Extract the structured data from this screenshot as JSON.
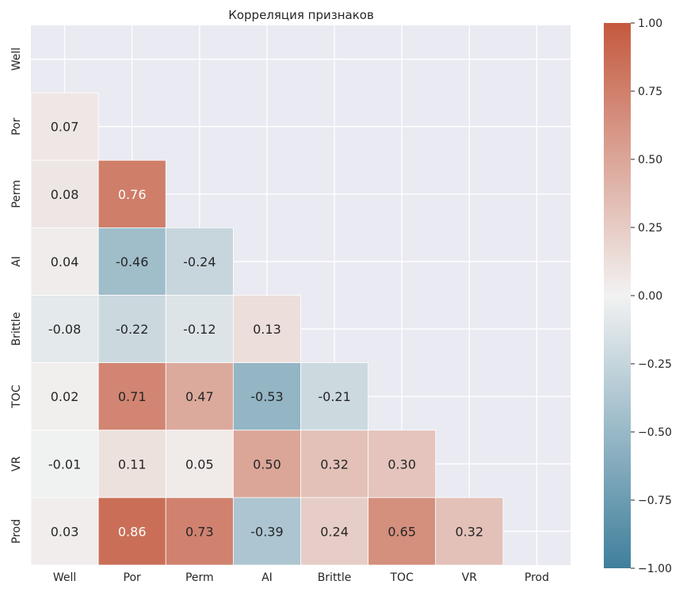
{
  "chart_data": {
    "type": "heatmap",
    "title": "Корреляция признаков",
    "variables": [
      "Well",
      "Por",
      "Perm",
      "AI",
      "Brittle",
      "TOC",
      "VR",
      "Prod"
    ],
    "mask": "upper-triangle-including-diagonal",
    "values": [
      [
        null,
        null,
        null,
        null,
        null,
        null,
        null,
        null
      ],
      [
        0.07,
        null,
        null,
        null,
        null,
        null,
        null,
        null
      ],
      [
        0.08,
        0.76,
        null,
        null,
        null,
        null,
        null,
        null
      ],
      [
        0.04,
        -0.46,
        -0.24,
        null,
        null,
        null,
        null,
        null
      ],
      [
        -0.08,
        -0.22,
        -0.12,
        0.13,
        null,
        null,
        null,
        null
      ],
      [
        0.02,
        0.71,
        0.47,
        -0.53,
        -0.21,
        null,
        null,
        null
      ],
      [
        -0.01,
        0.11,
        0.05,
        0.5,
        0.32,
        0.3,
        null,
        null
      ],
      [
        0.03,
        0.86,
        0.73,
        -0.39,
        0.24,
        0.65,
        0.32,
        null
      ]
    ],
    "value_labels": [
      [
        null,
        null,
        null,
        null,
        null,
        null,
        null,
        null
      ],
      [
        "0.07",
        null,
        null,
        null,
        null,
        null,
        null,
        null
      ],
      [
        "0.08",
        "0.76",
        null,
        null,
        null,
        null,
        null,
        null
      ],
      [
        "0.04",
        "-0.46",
        "-0.24",
        null,
        null,
        null,
        null,
        null
      ],
      [
        "-0.08",
        "-0.22",
        "-0.12",
        "0.13",
        null,
        null,
        null,
        null
      ],
      [
        "0.02",
        "0.71",
        "0.47",
        "-0.53",
        "-0.21",
        null,
        null,
        null
      ],
      [
        "-0.01",
        "0.11",
        "0.05",
        "0.50",
        "0.32",
        "0.30",
        null,
        null
      ],
      [
        "0.03",
        "0.86",
        "0.73",
        "-0.39",
        "0.24",
        "0.65",
        "0.32",
        null
      ]
    ],
    "colorbar": {
      "range": [
        -1.0,
        1.0
      ],
      "ticks": [
        1.0,
        0.75,
        0.5,
        0.25,
        0.0,
        -0.25,
        -0.5,
        -0.75,
        -1.0
      ],
      "tick_labels": [
        "1.00",
        "0.75",
        "0.50",
        "0.25",
        "0.00",
        "−0.25",
        "−0.50",
        "−0.75",
        "−1.00"
      ],
      "color_low": "#3f7f9c",
      "color_mid": "#f2f2f2",
      "color_high": "#c4593e"
    },
    "grid": true,
    "background": "#eaeaf2",
    "grid_color": "#ffffff"
  }
}
